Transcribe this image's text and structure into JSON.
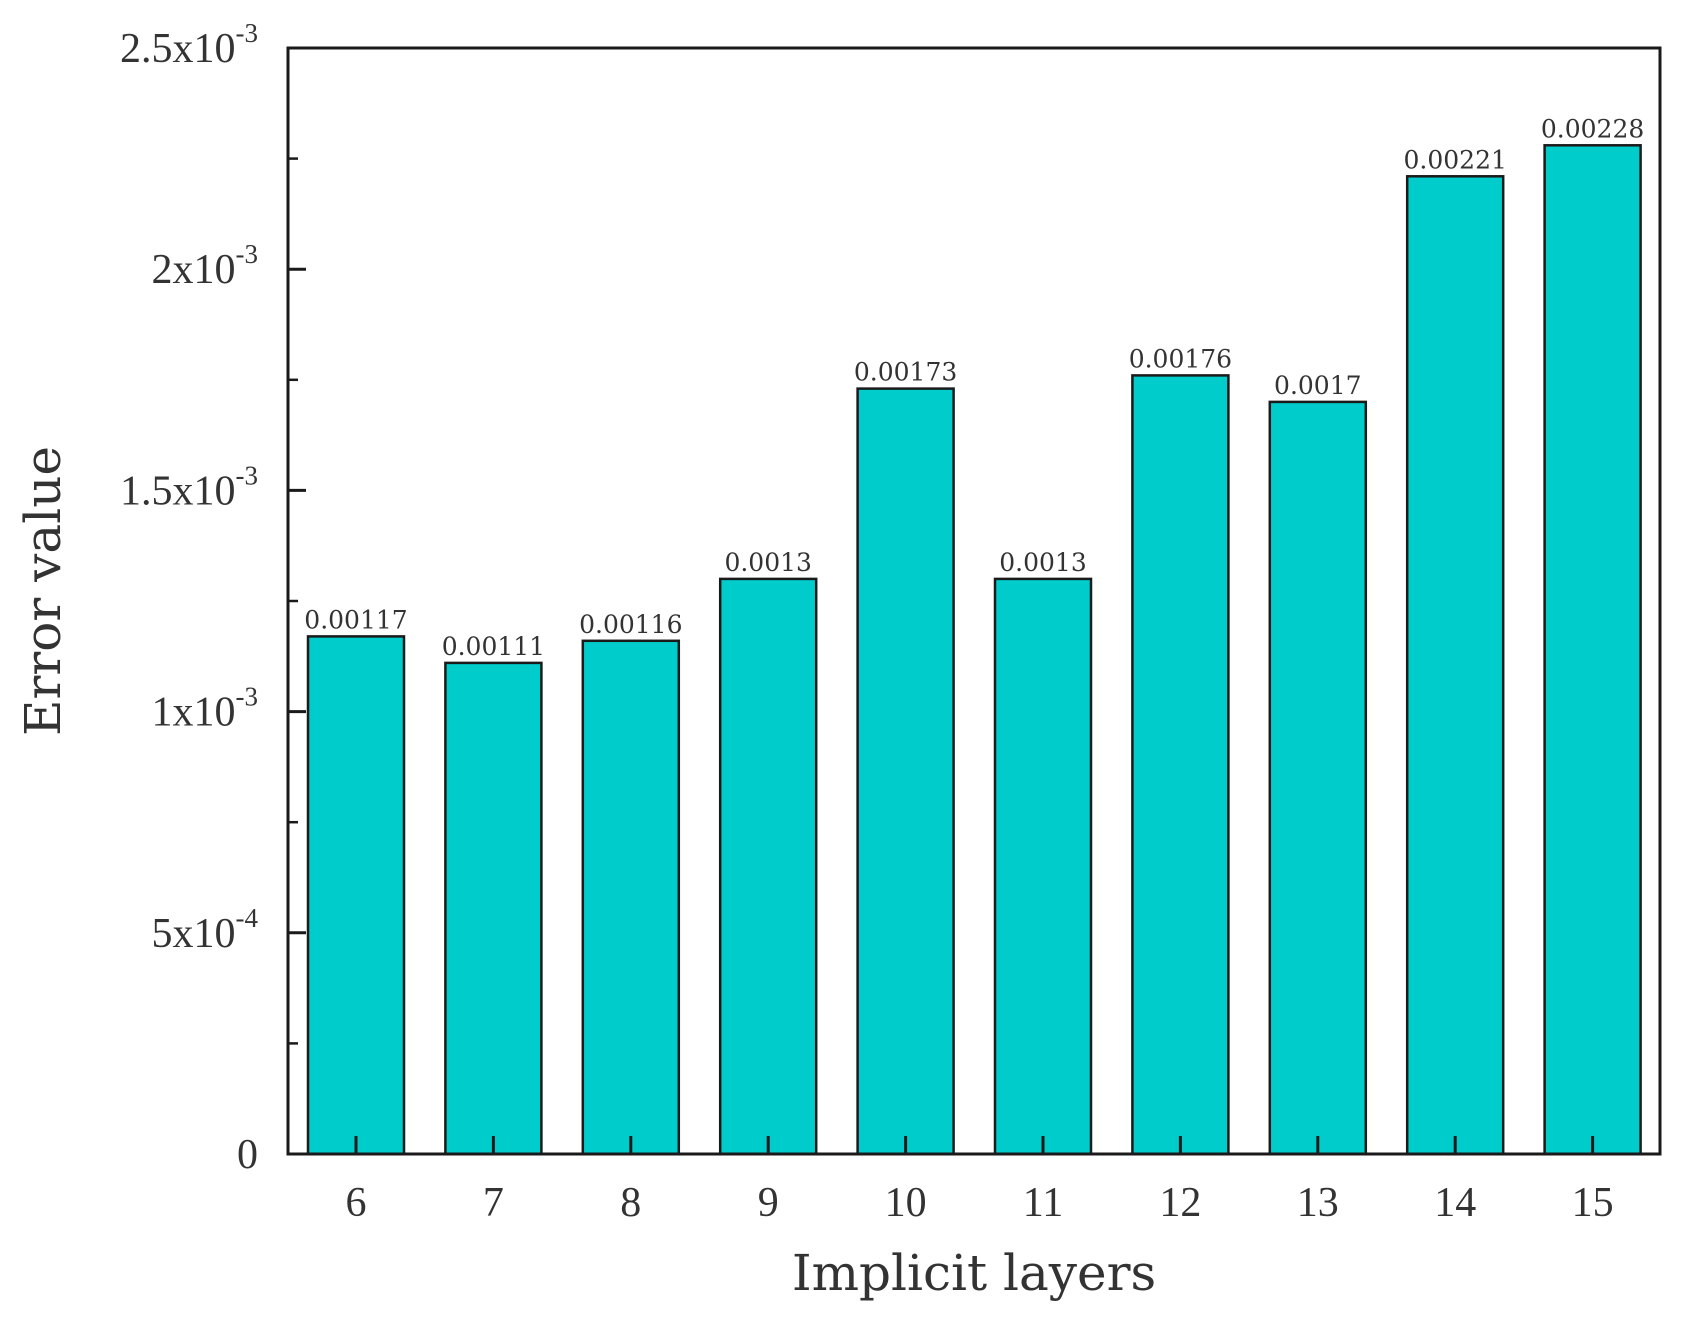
{
  "chart_data": {
    "type": "bar",
    "title": "",
    "xlabel": "Implicit layers",
    "ylabel": "Error value",
    "categories": [
      "6",
      "7",
      "8",
      "9",
      "10",
      "11",
      "12",
      "13",
      "14",
      "15"
    ],
    "values": [
      0.00117,
      0.00111,
      0.00116,
      0.0013,
      0.00173,
      0.0013,
      0.00176,
      0.0017,
      0.00221,
      0.00228
    ],
    "value_labels": [
      "0.00117",
      "0.00111",
      "0.00116",
      "0.0013",
      "0.00173",
      "0.0013",
      "0.00176",
      "0.0017",
      "0.00221",
      "0.00228"
    ],
    "ylim": [
      0,
      0.0025
    ],
    "yticks": [
      {
        "value": 0,
        "mantissa": "0",
        "exponent": ""
      },
      {
        "value": 0.0005,
        "mantissa": "5x10",
        "exponent": "-4"
      },
      {
        "value": 0.001,
        "mantissa": "1x10",
        "exponent": "-3"
      },
      {
        "value": 0.0015,
        "mantissa": "1.5x10",
        "exponent": "-3"
      },
      {
        "value": 0.002,
        "mantissa": "2x10",
        "exponent": "-3"
      },
      {
        "value": 0.0025,
        "mantissa": "2.5x10",
        "exponent": "-3"
      }
    ],
    "bar_color": "#00cccc",
    "bar_edge_color": "#1a1a1a",
    "grid": false,
    "legend": "none"
  }
}
